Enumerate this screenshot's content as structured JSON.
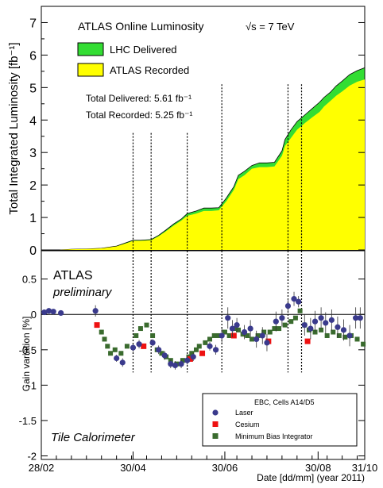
{
  "chart_data": [
    {
      "type": "area",
      "title": "ATLAS Online Luminosity",
      "energy_label": "√s = 7 TeV",
      "ylabel": "Total Integrated Luminosity [fb⁻¹]",
      "ylim": [
        0,
        7.5
      ],
      "yticks": [
        "0",
        "1",
        "2",
        "3",
        "4",
        "5",
        "6",
        "7"
      ],
      "x_unit": "days_since_2011-02-28",
      "xlim": [
        0,
        215
      ],
      "legend": [
        "LHC Delivered",
        "ATLAS Recorded"
      ],
      "legend_position": "top-left",
      "colors": {
        "delivered": "#33dd33",
        "recorded": "#ffff00"
      },
      "totals": {
        "delivered_label": "Total Delivered: 5.61 fb⁻¹",
        "recorded_label": "Total Recorded: 5.25 fb⁻¹"
      },
      "series": [
        {
          "name": "LHC Delivered",
          "x": [
            0,
            12,
            20,
            30,
            40,
            50,
            58,
            61,
            66,
            73,
            78,
            83,
            88,
            93,
            97,
            103,
            108,
            113,
            118,
            123,
            128,
            131,
            135,
            140,
            145,
            150,
            155,
            160,
            162,
            166,
            170,
            175,
            180,
            185,
            188,
            192,
            196,
            200,
            205,
            210,
            215
          ],
          "y": [
            0,
            0,
            0.02,
            0.03,
            0.05,
            0.12,
            0.25,
            0.3,
            0.3,
            0.32,
            0.45,
            0.62,
            0.8,
            0.95,
            1.12,
            1.2,
            1.29,
            1.29,
            1.3,
            1.6,
            1.95,
            2.3,
            2.42,
            2.6,
            2.68,
            2.68,
            2.7,
            3.05,
            3.4,
            3.7,
            3.95,
            4.15,
            4.35,
            4.55,
            4.7,
            4.85,
            5.05,
            5.2,
            5.4,
            5.52,
            5.61
          ]
        },
        {
          "name": "ATLAS Recorded",
          "x": [
            0,
            12,
            20,
            30,
            40,
            50,
            58,
            61,
            66,
            73,
            78,
            83,
            88,
            93,
            97,
            103,
            108,
            113,
            118,
            123,
            128,
            131,
            135,
            140,
            145,
            150,
            155,
            160,
            162,
            166,
            170,
            175,
            180,
            185,
            188,
            192,
            196,
            200,
            205,
            210,
            215
          ],
          "y": [
            0,
            0,
            0.02,
            0.03,
            0.05,
            0.11,
            0.23,
            0.28,
            0.28,
            0.3,
            0.42,
            0.58,
            0.75,
            0.9,
            1.05,
            1.12,
            1.2,
            1.2,
            1.22,
            1.5,
            1.85,
            2.18,
            2.3,
            2.5,
            2.55,
            2.55,
            2.57,
            2.9,
            3.2,
            3.45,
            3.7,
            3.9,
            4.08,
            4.25,
            4.42,
            4.58,
            4.75,
            4.88,
            5.06,
            5.18,
            5.25
          ]
        }
      ],
      "dotted_line_x": [
        61,
        73,
        97,
        120,
        164,
        173
      ],
      "dotted_line_top_y": [
        3.6,
        3.6,
        3.6,
        5.1,
        5.1,
        5.1
      ]
    },
    {
      "type": "scatter",
      "header": "ATLAS",
      "subheader": "preliminary",
      "footer": "Tile Calorimeter",
      "ylabel": "Gain variation [%]",
      "ylim": [
        -2.05,
        0.9
      ],
      "yticks": [
        "-2",
        "-1.5",
        "-1",
        "-0.5",
        "0",
        "0.5"
      ],
      "xlabel": "Date [dd/mm] (year 2011)",
      "xlim": [
        0,
        215
      ],
      "xticks": [
        {
          "x": 0,
          "label": "28/02"
        },
        {
          "x": 61,
          "label": "30/04"
        },
        {
          "x": 122,
          "label": "30/06"
        },
        {
          "x": 184,
          "label": "30/08"
        },
        {
          "x": 215,
          "label": "31/10"
        }
      ],
      "legend_title": "EBC, Cells A14/D5",
      "legend_position": "bottom-right",
      "series": [
        {
          "name": "Laser",
          "color": "#3a3a8c",
          "x": [
            2,
            5,
            8,
            13,
            36,
            50,
            54,
            61,
            65,
            74,
            78,
            82,
            86,
            89,
            93,
            97,
            101,
            112,
            116,
            120,
            124,
            127,
            130,
            135,
            139,
            143,
            147,
            150,
            156,
            160,
            164,
            168,
            171,
            175,
            179,
            182,
            186,
            189,
            193,
            197,
            201,
            205,
            209,
            212
          ],
          "y": [
            0.03,
            0.05,
            0.04,
            0.02,
            0.05,
            -0.62,
            -0.68,
            -0.47,
            -0.42,
            -0.4,
            -0.5,
            -0.58,
            -0.7,
            -0.72,
            -0.7,
            -0.65,
            -0.6,
            -0.45,
            -0.5,
            -0.3,
            -0.05,
            -0.2,
            -0.15,
            -0.25,
            -0.2,
            -0.35,
            -0.3,
            -0.4,
            -0.1,
            -0.05,
            0.12,
            0.22,
            0.18,
            -0.15,
            -0.2,
            -0.1,
            -0.05,
            -0.12,
            -0.08,
            -0.18,
            -0.22,
            -0.3,
            -0.05,
            -0.05
          ],
          "yerr": [
            0.03,
            0.03,
            0.03,
            0.03,
            0.08,
            0.05,
            0.06,
            0.06,
            0.06,
            0.05,
            0.06,
            0.06,
            0.06,
            0.06,
            0.06,
            0.06,
            0.06,
            0.06,
            0.07,
            0.1,
            0.15,
            0.12,
            0.1,
            0.1,
            0.12,
            0.12,
            0.12,
            0.12,
            0.14,
            0.12,
            0.1,
            0.1,
            0.08,
            0.15,
            0.15,
            0.15,
            0.15,
            0.15,
            0.15,
            0.15,
            0.15,
            0.15,
            0.15,
            0.15
          ]
        },
        {
          "name": "Cesium",
          "color": "#ee1111",
          "x": [
            37,
            68,
            99,
            107,
            128,
            151,
            177
          ],
          "y": [
            -0.15,
            -0.45,
            -0.63,
            -0.55,
            -0.3,
            -0.38,
            -0.38
          ],
          "yerr": [
            0,
            0,
            0,
            0,
            0,
            0,
            0
          ]
        },
        {
          "name": "Minimum Bias Integrator",
          "color": "#3a6b2e",
          "x": [
            40,
            42,
            44,
            46,
            49,
            53,
            57,
            63,
            66,
            70,
            74,
            77,
            80,
            83,
            86,
            90,
            94,
            98,
            100,
            103,
            105,
            109,
            112,
            115,
            118,
            122,
            125,
            128,
            131,
            134,
            137,
            140,
            144,
            148,
            152,
            155,
            158,
            162,
            166,
            169,
            172,
            175,
            178,
            182,
            186,
            190,
            194,
            198,
            202,
            206,
            210,
            214
          ],
          "y": [
            -0.25,
            -0.35,
            -0.45,
            -0.55,
            -0.5,
            -0.55,
            -0.45,
            -0.3,
            -0.2,
            -0.15,
            -0.3,
            -0.5,
            -0.55,
            -0.6,
            -0.65,
            -0.7,
            -0.65,
            -0.6,
            -0.55,
            -0.5,
            -0.45,
            -0.4,
            -0.35,
            -0.3,
            -0.3,
            -0.25,
            -0.3,
            -0.2,
            -0.22,
            -0.28,
            -0.3,
            -0.35,
            -0.3,
            -0.25,
            -0.25,
            -0.2,
            -0.2,
            -0.15,
            -0.1,
            -0.05,
            0.05,
            -0.15,
            -0.22,
            -0.25,
            -0.22,
            -0.3,
            -0.25,
            -0.3,
            -0.32,
            -0.3,
            -0.35,
            -0.42
          ],
          "yerr": []
        }
      ]
    }
  ]
}
